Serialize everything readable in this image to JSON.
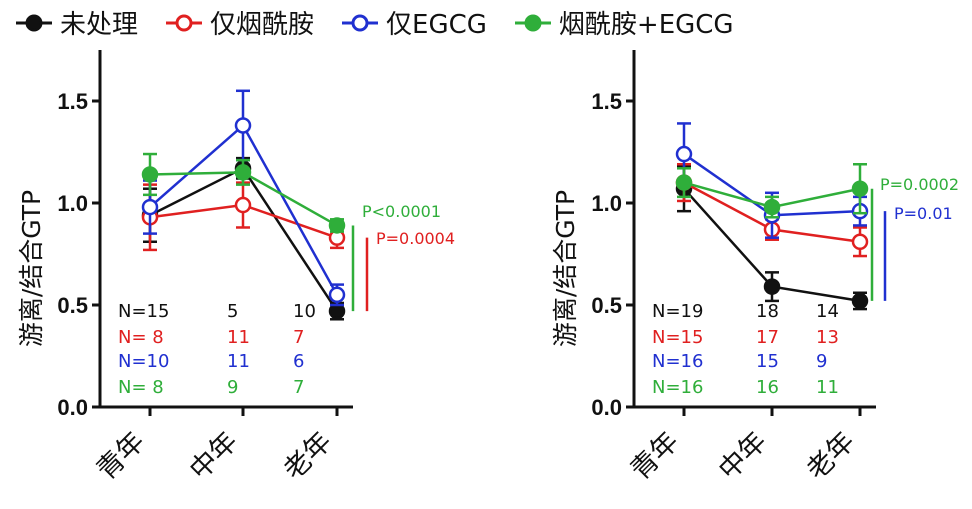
{
  "colors": {
    "untreated": "#111111",
    "nam": "#e02020",
    "egcg": "#2030d0",
    "combo": "#2fae3a"
  },
  "legend": [
    {
      "key": "untreated",
      "label": "未处理",
      "filled": true
    },
    {
      "key": "nam",
      "label": "仅烟酰胺",
      "filled": false
    },
    {
      "key": "egcg",
      "label": "仅EGCG",
      "filled": false
    },
    {
      "key": "combo",
      "label": "烟酰胺+EGCG",
      "filled": true
    }
  ],
  "chart_data": [
    {
      "type": "line",
      "categories": [
        "青年",
        "中年",
        "老年"
      ],
      "ylabel": "游离/结合GTP",
      "ylim": [
        0,
        1.75
      ],
      "yticks": [
        "0.0",
        "0.5",
        "1.0",
        "1.5"
      ],
      "series": [
        {
          "name": "未处理",
          "key": "untreated",
          "filled": true,
          "values": [
            0.94,
            1.17,
            0.47
          ],
          "err": [
            0.13,
            0.05,
            0.04
          ]
        },
        {
          "name": "仅烟酰胺",
          "key": "nam",
          "filled": false,
          "values": [
            0.93,
            0.99,
            0.83
          ],
          "err": [
            0.16,
            0.11,
            0.05
          ]
        },
        {
          "name": "仅EGCG",
          "key": "egcg",
          "filled": false,
          "values": [
            0.98,
            1.38,
            0.55
          ],
          "err": [
            0.13,
            0.17,
            0.05
          ]
        },
        {
          "name": "烟酰胺+EGCG",
          "key": "combo",
          "filled": true,
          "values": [
            1.14,
            1.15,
            0.89
          ],
          "err": [
            0.1,
            0.06,
            0.03
          ]
        }
      ],
      "n_table": [
        {
          "key": "untreated",
          "values": [
            "N=15",
            "5",
            "10"
          ]
        },
        {
          "key": "nam",
          "values": [
            "N= 8",
            "11",
            "7"
          ]
        },
        {
          "key": "egcg",
          "values": [
            "N=10",
            "11",
            "6"
          ]
        },
        {
          "key": "combo",
          "values": [
            "N= 8",
            "9",
            "7"
          ]
        }
      ],
      "pvalues": [
        {
          "key": "combo",
          "label": "P<0.0001",
          "range": [
            0.47,
            0.89
          ]
        },
        {
          "key": "nam",
          "label": "P=0.0004",
          "range": [
            0.47,
            0.83
          ]
        }
      ]
    },
    {
      "type": "line",
      "categories": [
        "青年",
        "中年",
        "老年"
      ],
      "ylabel": "游离/结合GTP",
      "ylim": [
        0,
        1.75
      ],
      "yticks": [
        "0.0",
        "0.5",
        "1.0",
        "1.5"
      ],
      "series": [
        {
          "name": "未处理",
          "key": "untreated",
          "filled": true,
          "values": [
            1.07,
            0.59,
            0.52
          ],
          "err": [
            0.11,
            0.07,
            0.04
          ]
        },
        {
          "name": "仅烟酰胺",
          "key": "nam",
          "filled": false,
          "values": [
            1.1,
            0.87,
            0.81
          ],
          "err": [
            0.09,
            0.05,
            0.07
          ]
        },
        {
          "name": "仅EGCG",
          "key": "egcg",
          "filled": false,
          "values": [
            1.24,
            0.94,
            0.96
          ],
          "err": [
            0.15,
            0.11,
            0.07
          ]
        },
        {
          "name": "烟酰胺+EGCG",
          "key": "combo",
          "filled": true,
          "values": [
            1.1,
            0.98,
            1.07
          ],
          "err": [
            0.07,
            0.05,
            0.12
          ]
        }
      ],
      "n_table": [
        {
          "key": "untreated",
          "values": [
            "N=19",
            "18",
            "14"
          ]
        },
        {
          "key": "nam",
          "values": [
            "N=15",
            "17",
            "13"
          ]
        },
        {
          "key": "egcg",
          "values": [
            "N=16",
            "15",
            "9"
          ]
        },
        {
          "key": "combo",
          "values": [
            "N=16",
            "16",
            "11"
          ]
        }
      ],
      "pvalues": [
        {
          "key": "combo",
          "label": "P=0.0002",
          "range": [
            0.52,
            1.07
          ]
        },
        {
          "key": "egcg",
          "label": "P=0.01",
          "range": [
            0.52,
            0.96
          ]
        }
      ]
    }
  ]
}
